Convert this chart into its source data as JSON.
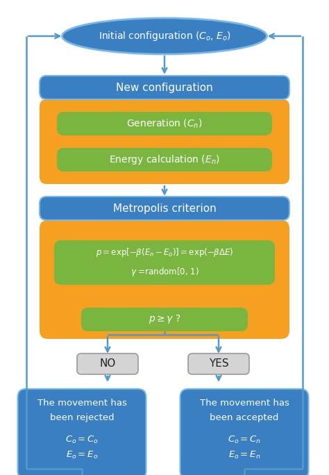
{
  "bg_color": "#ffffff",
  "blue": "#3a7fc1",
  "blue_dark": "#2e6da4",
  "orange": "#f5a020",
  "green": "#7ab540",
  "gray_box": "#d4d4d4",
  "gray_edge": "#999999",
  "white": "#ffffff",
  "arrow_color": "#5599cc",
  "text_white": "#ffffff",
  "text_dark": "#222222",
  "ellipse_label": "Initial configuration ($C_o$, $E_o$)",
  "new_config_label": "New configuration",
  "gen_label": "Generation ($C_n$)",
  "energy_label": "Energy calculation ($E_n$)",
  "metro_label": "Metropolis criterion",
  "formula_line1": "$p = \\exp[-\\beta(E_n - E_o)] = \\exp(-\\beta\\Delta E)$",
  "formula_line2": "$\\gamma$ =random[0, 1)",
  "p_gamma_label": "$p \\geq \\gamma$ ?",
  "no_label": "NO",
  "yes_label": "YES",
  "rej_line1": "The movement has",
  "rej_line2": "been rejected",
  "rej_line3": "$C_o = C_o$",
  "rej_line4": "$E_o = E_o$",
  "acc_line1": "The movement has",
  "acc_line2": "been accepted",
  "acc_line3": "$C_o = C_n$",
  "acc_line4": "$E_o = E_n$"
}
